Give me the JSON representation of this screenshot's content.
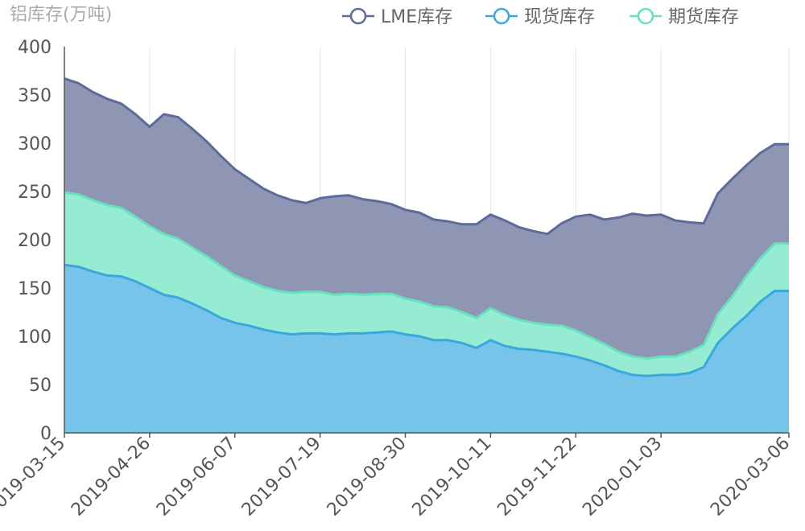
{
  "chart_data": {
    "type": "area",
    "stacked": false,
    "ylabel": "铝库存(万吨)",
    "ylim": [
      0,
      400
    ],
    "yticks": [
      0,
      50,
      100,
      150,
      200,
      250,
      300,
      350,
      400
    ],
    "grid": "vertical",
    "legend_position": "top-right",
    "x": [
      "2019-03-15",
      "2019-03-22",
      "2019-03-29",
      "2019-04-05",
      "2019-04-12",
      "2019-04-19",
      "2019-04-26",
      "2019-05-03",
      "2019-05-10",
      "2019-05-17",
      "2019-05-24",
      "2019-05-31",
      "2019-06-07",
      "2019-06-14",
      "2019-06-21",
      "2019-06-28",
      "2019-07-05",
      "2019-07-12",
      "2019-07-19",
      "2019-07-26",
      "2019-08-02",
      "2019-08-09",
      "2019-08-16",
      "2019-08-23",
      "2019-08-30",
      "2019-09-06",
      "2019-09-13",
      "2019-09-20",
      "2019-09-27",
      "2019-10-04",
      "2019-10-11",
      "2019-10-18",
      "2019-10-25",
      "2019-11-01",
      "2019-11-08",
      "2019-11-15",
      "2019-11-22",
      "2019-11-29",
      "2019-12-06",
      "2019-12-13",
      "2019-12-20",
      "2019-12-27",
      "2020-01-03",
      "2020-01-10",
      "2020-01-17",
      "2020-01-24",
      "2020-01-31",
      "2020-02-07",
      "2020-02-14",
      "2020-02-21",
      "2020-02-28",
      "2020-03-06"
    ],
    "xtick_labels": [
      "2019-03-15",
      "2019-04-26",
      "2019-06-07",
      "2019-07-19",
      "2019-08-30",
      "2019-10-11",
      "2019-11-22",
      "2020-01-03",
      "2020-03-06"
    ],
    "series": [
      {
        "name": "LME库存",
        "color": "#5c6b99",
        "fill": "#8e96b4",
        "values": [
          367,
          362,
          353,
          346,
          341,
          330,
          317,
          330,
          327,
          315,
          302,
          287,
          273,
          263,
          253,
          246,
          241,
          238,
          243,
          245,
          246,
          242,
          240,
          237,
          231,
          228,
          221,
          219,
          216,
          216,
          226,
          220,
          213,
          209,
          206,
          217,
          224,
          226,
          221,
          223,
          227,
          225,
          226,
          220,
          218,
          217,
          248,
          263,
          277,
          290,
          299,
          299
        ]
      },
      {
        "name": "期货库存",
        "color": "#68e0c0",
        "fill": "#95ecd3",
        "values": [
          249,
          247,
          241,
          236,
          233,
          224,
          214,
          206,
          201,
          192,
          183,
          173,
          163,
          157,
          151,
          147,
          145,
          146,
          146,
          143,
          144,
          143,
          144,
          144,
          139,
          136,
          131,
          130,
          125,
          119,
          129,
          122,
          117,
          114,
          112,
          111,
          106,
          99,
          92,
          84,
          79,
          77,
          79,
          79,
          84,
          91,
          123,
          141,
          162,
          181,
          196,
          196
        ]
      },
      {
        "name": "现货库存",
        "color": "#3aa7df",
        "fill": "#76c4ea",
        "values": [
          174,
          172,
          167,
          163,
          162,
          157,
          150,
          143,
          140,
          134,
          127,
          119,
          114,
          111,
          107,
          104,
          102,
          103,
          103,
          102,
          103,
          103,
          104,
          105,
          102,
          100,
          96,
          96,
          93,
          88,
          96,
          90,
          87,
          86,
          84,
          82,
          79,
          75,
          70,
          64,
          60,
          59,
          60,
          60,
          62,
          68,
          93,
          108,
          121,
          136,
          147,
          147
        ]
      }
    ]
  }
}
